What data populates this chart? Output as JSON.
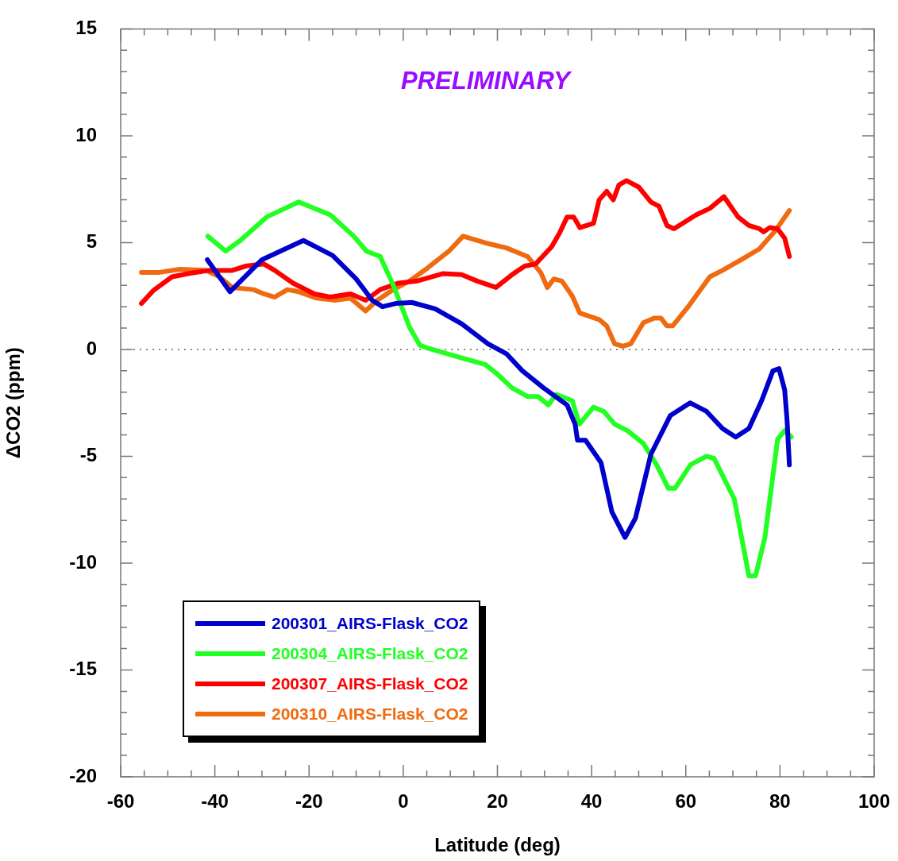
{
  "chart_data": {
    "type": "line",
    "xlabel": "Latitude (deg)",
    "ylabel": "ΔCO2 (ppm)",
    "annotations": [
      "PRELIMINARY"
    ],
    "xlim": [
      -60,
      100
    ],
    "xticks": [
      -60,
      {
        "value": -55,
        "label": null
      },
      {
        "value": -50,
        "label": null
      },
      {
        "value": -45,
        "label": null
      },
      -40,
      {
        "value": -35,
        "label": null
      },
      {
        "value": -30,
        "label": null
      },
      {
        "value": -25,
        "label": null
      },
      -20,
      {
        "value": -15,
        "label": null
      },
      {
        "value": -10,
        "label": null
      },
      {
        "value": -5,
        "label": null
      },
      0,
      {
        "value": 5,
        "label": null
      },
      {
        "value": 10,
        "label": null
      },
      {
        "value": 15,
        "label": null
      },
      20,
      {
        "value": 25,
        "label": null
      },
      {
        "value": 30,
        "label": null
      },
      {
        "value": 35,
        "label": null
      },
      40,
      {
        "value": 45,
        "label": null
      },
      {
        "value": 50,
        "label": null
      },
      {
        "value": 55,
        "label": null
      },
      60,
      {
        "value": 65,
        "label": null
      },
      {
        "value": 70,
        "label": null
      },
      {
        "value": 75,
        "label": null
      },
      80,
      {
        "value": 85,
        "label": null
      },
      {
        "value": 90,
        "label": null
      },
      {
        "value": 95,
        "label": null
      },
      100
    ],
    "ylim": [
      -20,
      15
    ],
    "yticks": [
      -20,
      {
        "value": -19,
        "label": null
      },
      {
        "value": -18,
        "label": null
      },
      {
        "value": -17,
        "label": null
      },
      {
        "value": -16,
        "label": null
      },
      -15,
      {
        "value": -14,
        "label": null
      },
      {
        "value": -13,
        "label": null
      },
      {
        "value": -12,
        "label": null
      },
      {
        "value": -11,
        "label": null
      },
      -10,
      {
        "value": -9,
        "label": null
      },
      {
        "value": -8,
        "label": null
      },
      {
        "value": -7,
        "label": null
      },
      {
        "value": -6,
        "label": null
      },
      -5,
      {
        "value": -4,
        "label": null
      },
      {
        "value": -3,
        "label": null
      },
      {
        "value": -2,
        "label": null
      },
      {
        "value": -1,
        "label": null
      },
      0,
      {
        "value": 1,
        "label": null
      },
      {
        "value": 2,
        "label": null
      },
      {
        "value": 3,
        "label": null
      },
      {
        "value": 4,
        "label": null
      },
      5,
      {
        "value": 6,
        "label": null
      },
      {
        "value": 7,
        "label": null
      },
      {
        "value": 8,
        "label": null
      },
      {
        "value": 9,
        "label": null
      },
      10,
      {
        "value": 11,
        "label": null
      },
      {
        "value": 12,
        "label": null
      },
      {
        "value": 13,
        "label": null
      },
      {
        "value": 14,
        "label": null
      },
      15
    ],
    "ref_lines": [
      {
        "axis": "y",
        "value": 0,
        "color": "#888888",
        "line_style": "dotted"
      }
    ],
    "legend": "bottom left",
    "series": [
      {
        "name": "200301_AIRS-Flask_CO2",
        "color": "#0000cc",
        "x": [
          -41.6,
          -36.8,
          -30,
          -21.2,
          -15,
          -10,
          -6.6,
          -4.4,
          -1.6,
          1.8,
          6.8,
          12.4,
          18,
          21.9,
          25.3,
          29.8,
          34.8,
          36.5,
          37,
          38.7,
          42,
          44.3,
          47.1,
          49.3,
          52.6,
          56.7,
          60.9,
          64.4,
          67.8,
          70.6,
          73.4,
          76.1,
          78.5,
          79.8,
          81,
          81.5,
          82
        ],
        "values": [
          4.2,
          2.7,
          4.2,
          5.1,
          4.4,
          3.3,
          2.3,
          2.0,
          2.15,
          2.2,
          1.9,
          1.2,
          0.26,
          -0.2,
          -1.0,
          -1.8,
          -2.6,
          -3.5,
          -4.25,
          -4.25,
          -5.3,
          -7.6,
          -8.8,
          -7.9,
          -4.9,
          -3.1,
          -2.5,
          -2.9,
          -3.7,
          -4.1,
          -3.7,
          -2.4,
          -1.0,
          -0.9,
          -1.9,
          -3.3,
          -5.4
        ]
      },
      {
        "name": "200304_AIRS-Flask_CO2",
        "color": "#22ff22",
        "x": [
          -41.5,
          -37.7,
          -34.6,
          -29,
          -22.2,
          -15.5,
          -10.5,
          -7.8,
          -4.9,
          -2.1,
          1.3,
          3.5,
          5.1,
          12.4,
          17.4,
          19.7,
          23.1,
          26.4,
          28.6,
          30.8,
          32.5,
          35.9,
          37.4,
          40.4,
          42.6,
          44.9,
          47.6,
          51,
          53.8,
          56.3,
          57.7,
          61,
          64.4,
          66,
          70.3,
          73.4,
          74.8,
          76.8,
          79.5,
          81,
          82.4
        ],
        "values": [
          5.3,
          4.6,
          5.1,
          6.2,
          6.9,
          6.3,
          5.3,
          4.6,
          4.35,
          3.0,
          1.06,
          0.2,
          0.07,
          -0.4,
          -0.7,
          -1.1,
          -1.8,
          -2.2,
          -2.2,
          -2.6,
          -2.1,
          -2.4,
          -3.5,
          -2.7,
          -2.9,
          -3.5,
          -3.8,
          -4.4,
          -5.4,
          -6.5,
          -6.5,
          -5.4,
          -5.0,
          -5.1,
          -7.0,
          -10.6,
          -10.6,
          -8.8,
          -4.2,
          -3.8,
          -4.1
        ]
      },
      {
        "name": "200307_AIRS-Flask_CO2",
        "color": "#ff0000",
        "x": [
          -55.6,
          -53.1,
          -49.1,
          -45.7,
          -41.3,
          -36.3,
          -33.5,
          -29.6,
          -27.3,
          -23.4,
          -18.9,
          -15.5,
          -11.2,
          -8,
          -4.9,
          -1.1,
          2.9,
          8.5,
          12.4,
          15.7,
          19.7,
          23.1,
          25.8,
          28.1,
          31.5,
          33.2,
          34.8,
          36.2,
          37.5,
          40.4,
          41.6,
          43.2,
          44.6,
          45.8,
          47.4,
          50,
          52.6,
          54.3,
          56,
          57.5,
          62.2,
          65.1,
          68.1,
          71.1,
          73.4,
          75.6,
          76.5,
          77.8,
          79.5,
          81,
          82
        ],
        "values": [
          2.15,
          2.75,
          3.4,
          3.55,
          3.7,
          3.7,
          3.9,
          4.0,
          3.7,
          3.1,
          2.6,
          2.45,
          2.6,
          2.3,
          2.8,
          3.1,
          3.2,
          3.55,
          3.5,
          3.2,
          2.9,
          3.5,
          3.9,
          4.0,
          4.8,
          5.45,
          6.2,
          6.2,
          5.7,
          5.9,
          7.0,
          7.4,
          7.0,
          7.7,
          7.9,
          7.6,
          6.9,
          6.7,
          5.8,
          5.65,
          6.3,
          6.6,
          7.15,
          6.2,
          5.8,
          5.65,
          5.5,
          5.7,
          5.65,
          5.2,
          4.35
        ]
      },
      {
        "name": "200310_AIRS-Flask_CO2",
        "color": "#f06a10",
        "x": [
          -55.6,
          -52,
          -47.4,
          -41.9,
          -39,
          -36.3,
          -31.8,
          -29.6,
          -27.3,
          -24.6,
          -22.2,
          -18.4,
          -14.5,
          -11.2,
          -8,
          -5.5,
          -2.1,
          1.3,
          5.1,
          9.7,
          12.7,
          18.1,
          21.9,
          26.4,
          29.2,
          30.6,
          32,
          33.7,
          35.9,
          37.5,
          41.6,
          43.2,
          44.9,
          46.6,
          48.3,
          51,
          53.3,
          54.7,
          56,
          57.2,
          60.5,
          65.1,
          67.8,
          71.8,
          75.6,
          79,
          82
        ],
        "values": [
          3.6,
          3.6,
          3.75,
          3.7,
          3.4,
          2.9,
          2.8,
          2.6,
          2.45,
          2.8,
          2.7,
          2.4,
          2.3,
          2.4,
          1.8,
          2.3,
          2.8,
          3.2,
          3.8,
          4.6,
          5.3,
          4.95,
          4.75,
          4.35,
          3.6,
          2.9,
          3.3,
          3.2,
          2.5,
          1.7,
          1.4,
          1.1,
          0.26,
          0.15,
          0.26,
          1.25,
          1.47,
          1.47,
          1.1,
          1.1,
          2.0,
          3.4,
          3.7,
          4.2,
          4.7,
          5.55,
          6.5
        ]
      }
    ]
  }
}
